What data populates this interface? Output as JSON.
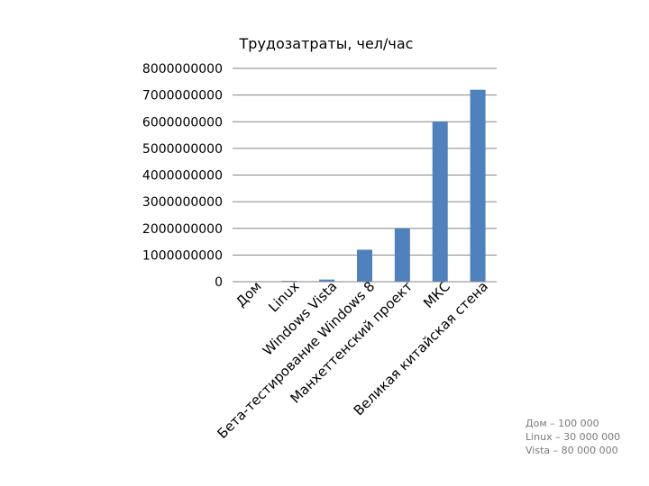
{
  "chart_data": {
    "type": "bar",
    "title": "Трудозатраты, чел/час",
    "categories": [
      "Дом",
      "Linux",
      "Windows Vista",
      "Бета-тестирование Windows 8",
      "Манхеттенский проект",
      "МКС",
      "Великая китайская стена"
    ],
    "values": [
      100000,
      30000000,
      80000000,
      1200000000,
      2000000000,
      6000000000,
      7200000000
    ],
    "ylim": [
      0,
      8000000000
    ],
    "yticks": [
      "0",
      "1000000000",
      "2000000000",
      "3000000000",
      "4000000000",
      "5000000000",
      "6000000000",
      "7000000000",
      "8000000000"
    ],
    "grid": true,
    "legend": "none",
    "bar_color": "#4f81bd"
  },
  "notes": [
    "Дом – 100 000",
    "Linux – 30 000 000",
    "Vista – 80 000 000"
  ]
}
